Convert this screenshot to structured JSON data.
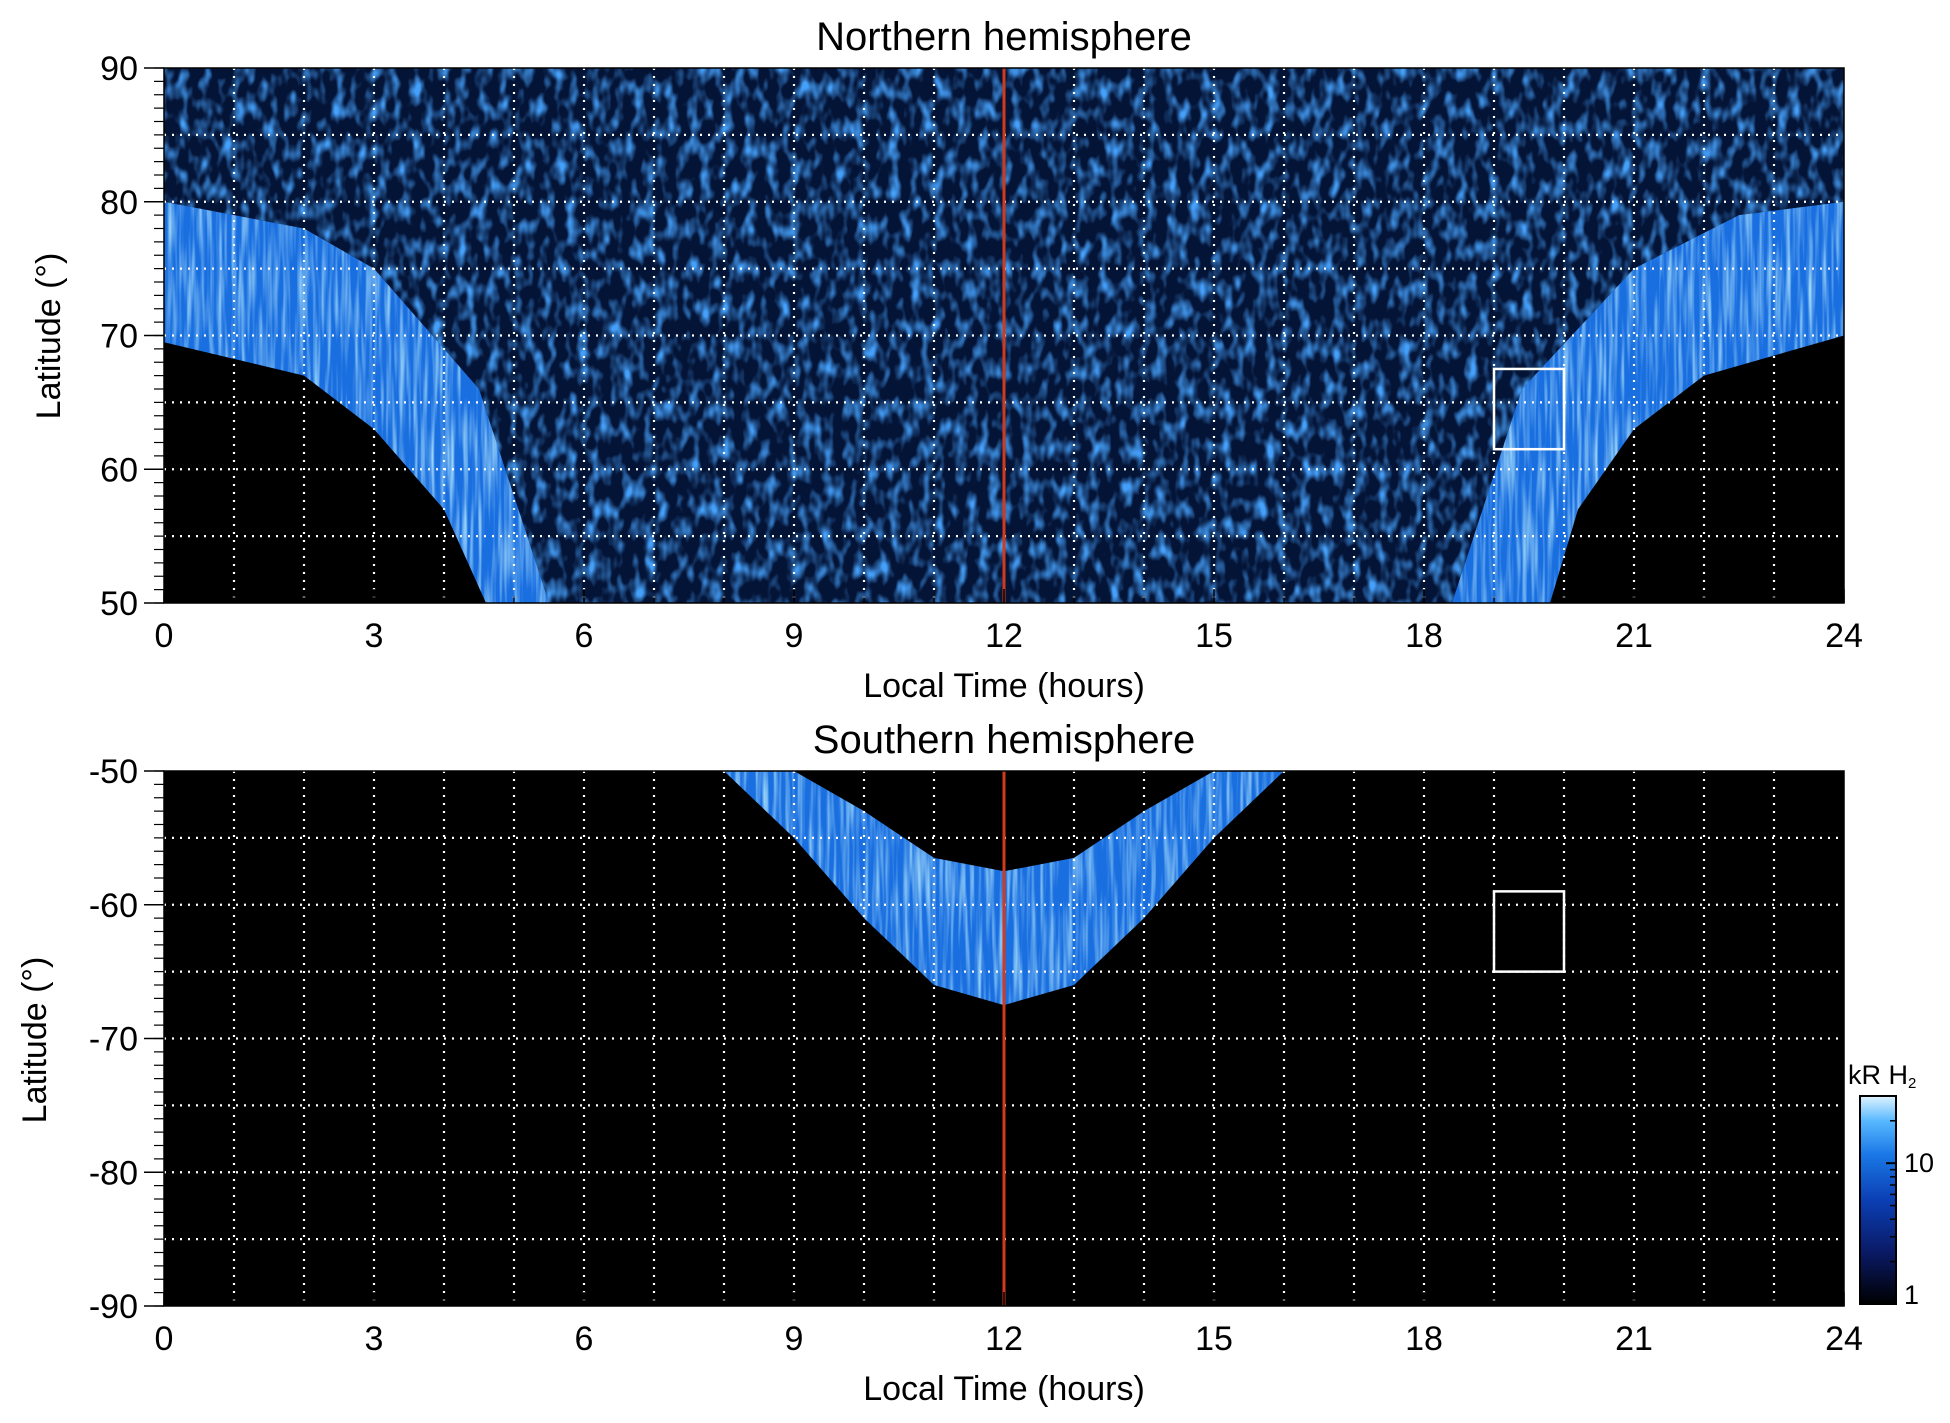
{
  "figure": {
    "colorbar": {
      "label_main": "kR H",
      "label_sub": "2",
      "scale": "log",
      "range": [
        1,
        30
      ],
      "tick_labels": [
        "10",
        "1"
      ],
      "colors": [
        "#000000",
        "#0a1a66",
        "#0b3fb5",
        "#1a78e6",
        "#58b8ff",
        "#dff3ff"
      ]
    },
    "colors": {
      "background": "#000000",
      "grid": "#ffffff",
      "noon_line": "#d23a1e",
      "region_box": "#ffffff",
      "emission_low": "#0b3a9e",
      "emission_mid": "#1a6fe0",
      "emission_high": "#7cc8ff"
    }
  },
  "chart_data": [
    {
      "type": "heatmap",
      "title": "Northern hemisphere",
      "xlabel": "Local Time (hours)",
      "ylabel": "Latitude (°)",
      "xlim": [
        0,
        24
      ],
      "ylim": [
        50,
        90
      ],
      "x_ticks": [
        "0",
        "3",
        "6",
        "9",
        "12",
        "15",
        "18",
        "21",
        "24"
      ],
      "y_ticks": [
        "90",
        "80",
        "70",
        "60",
        "50"
      ],
      "grid": true,
      "grid_x_step_hours": 1,
      "grid_y_step_deg": 5,
      "noon_line_x": 12,
      "highlight_box": {
        "x": [
          19,
          20
        ],
        "y": [
          61.5,
          67.5
        ]
      },
      "auroral_oval": {
        "description_values": "bright emission band; inner edge latitude by local time",
        "inner_edge": [
          [
            0,
            69.5
          ],
          [
            2,
            67
          ],
          [
            3,
            63
          ],
          [
            4,
            57
          ],
          [
            4.6,
            50
          ],
          [
            19.8,
            50
          ],
          [
            20.2,
            57
          ],
          [
            21,
            63
          ],
          [
            22,
            67
          ],
          [
            24,
            70
          ]
        ],
        "outer_edge": [
          [
            0,
            80
          ],
          [
            2,
            78
          ],
          [
            3,
            75
          ],
          [
            4.5,
            66
          ],
          [
            5.5,
            50
          ],
          [
            18.4,
            50
          ],
          [
            19.4,
            66
          ],
          [
            21,
            75
          ],
          [
            22.5,
            79
          ],
          [
            24,
            80
          ]
        ],
        "peak_brightness_kR": 25,
        "background_brightness_kR": 3
      }
    },
    {
      "type": "heatmap",
      "title": "Southern hemisphere",
      "xlabel": "Local Time (hours)",
      "ylabel": "Latitude (°)",
      "xlim": [
        0,
        24
      ],
      "ylim": [
        -90,
        -50
      ],
      "x_ticks": [
        "0",
        "3",
        "6",
        "9",
        "12",
        "15",
        "18",
        "21",
        "24"
      ],
      "y_ticks": [
        "-50",
        "-60",
        "-70",
        "-80",
        "-90"
      ],
      "grid": true,
      "grid_x_step_hours": 1,
      "grid_y_step_deg": 5,
      "noon_line_x": 12,
      "highlight_box": {
        "x": [
          19,
          20
        ],
        "y": [
          -65,
          -59
        ]
      },
      "auroral_oval": {
        "description_values": "emission arc centred near noon",
        "outer_edge": [
          [
            8,
            -50
          ],
          [
            9,
            -55
          ],
          [
            10,
            -61
          ],
          [
            11,
            -66
          ],
          [
            12,
            -67.5
          ],
          [
            13,
            -66
          ],
          [
            14,
            -61
          ],
          [
            15,
            -55
          ],
          [
            16,
            -50
          ]
        ],
        "inner_edge": [
          [
            9,
            -50
          ],
          [
            10,
            -53
          ],
          [
            11,
            -56.5
          ],
          [
            12,
            -57.5
          ],
          [
            13,
            -56.5
          ],
          [
            14,
            -53
          ],
          [
            15,
            -50
          ]
        ],
        "peak_brightness_kR": 18,
        "background_brightness_kR": 0
      }
    }
  ]
}
